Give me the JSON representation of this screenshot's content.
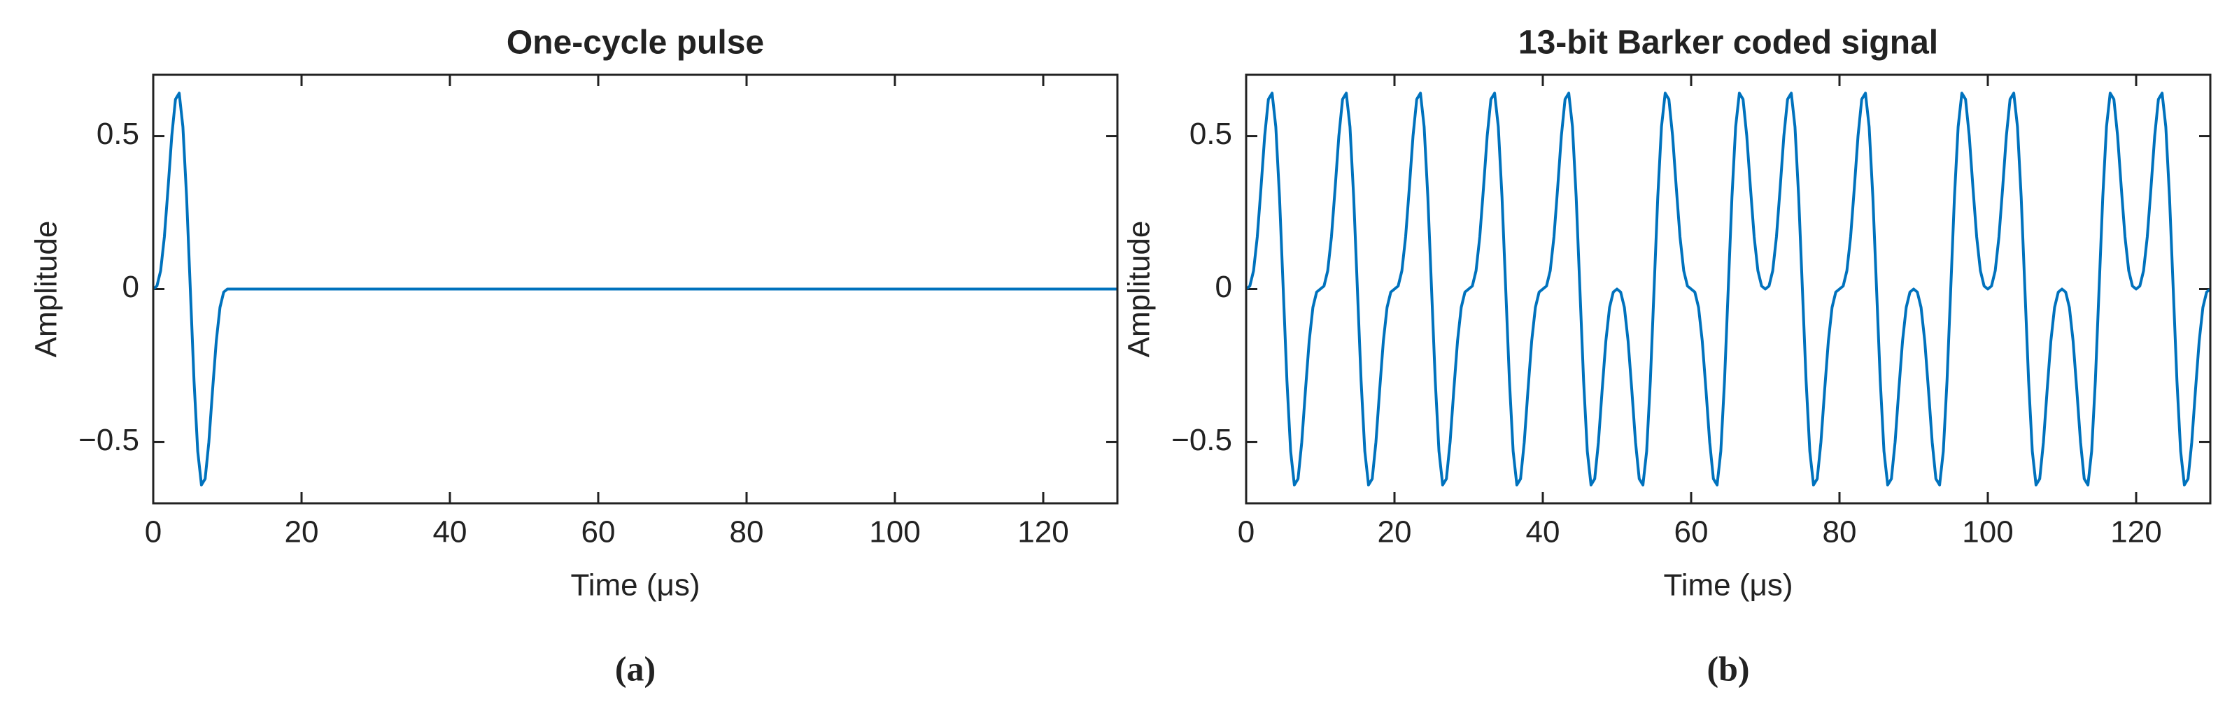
{
  "chart_data": [
    {
      "type": "line",
      "title": "One-cycle pulse",
      "xlabel": "Time (μs)",
      "ylabel": "Amplitude",
      "caption": "(a)",
      "color": "#0072bd",
      "xlim": [
        0,
        130
      ],
      "xticks": [
        0,
        20,
        40,
        60,
        80,
        100,
        120
      ],
      "ylim": [
        -0.7,
        0.7
      ],
      "yticks": [
        {
          "value": -0.5,
          "label": "−0.5"
        },
        0,
        0.5
      ],
      "x": [
        0,
        0.5,
        1,
        1.5,
        2,
        2.5,
        3,
        3.5,
        4,
        4.5,
        5,
        5.5,
        6,
        6.5,
        7,
        7.5,
        8,
        8.5,
        9,
        9.5,
        10,
        130
      ],
      "values": [
        0,
        0.01,
        0.06,
        0.17,
        0.33,
        0.5,
        0.62,
        0.64,
        0.53,
        0.3,
        0,
        -0.3,
        -0.53,
        -0.64,
        -0.62,
        -0.5,
        -0.33,
        -0.17,
        -0.06,
        -0.01,
        0,
        0
      ]
    },
    {
      "type": "line",
      "title": "13-bit Barker coded signal",
      "xlabel": "Time (μs)",
      "ylabel": "Amplitude",
      "caption": "(b)",
      "color": "#0072bd",
      "xlim": [
        0,
        130
      ],
      "xticks": [
        0,
        20,
        40,
        60,
        80,
        100,
        120
      ],
      "ylim": [
        -0.7,
        0.7
      ],
      "yticks": [
        {
          "value": -0.5,
          "label": "−0.5"
        },
        0,
        0.5
      ],
      "x": [
        0,
        0.5,
        1,
        1.5,
        2,
        2.5,
        3,
        3.5,
        4,
        4.5,
        5,
        5.5,
        6,
        6.5,
        7,
        7.5,
        8,
        8.5,
        9,
        9.5,
        10,
        10.5,
        11,
        11.5,
        12,
        12.5,
        13,
        13.5,
        14,
        14.5,
        15,
        15.5,
        16,
        16.5,
        17,
        17.5,
        18,
        18.5,
        19,
        19.5,
        20,
        20.5,
        21,
        21.5,
        22,
        22.5,
        23,
        23.5,
        24,
        24.5,
        25,
        25.5,
        26,
        26.5,
        27,
        27.5,
        28,
        28.5,
        29,
        29.5,
        30,
        30.5,
        31,
        31.5,
        32,
        32.5,
        33,
        33.5,
        34,
        34.5,
        35,
        35.5,
        36,
        36.5,
        37,
        37.5,
        38,
        38.5,
        39,
        39.5,
        40,
        40.5,
        41,
        41.5,
        42,
        42.5,
        43,
        43.5,
        44,
        44.5,
        45,
        45.5,
        46,
        46.5,
        47,
        47.5,
        48,
        48.5,
        49,
        49.5,
        50,
        50.5,
        51,
        51.5,
        52,
        52.5,
        53,
        53.5,
        54,
        54.5,
        55,
        55.5,
        56,
        56.5,
        57,
        57.5,
        58,
        58.5,
        59,
        59.5,
        60,
        60.5,
        61,
        61.5,
        62,
        62.5,
        63,
        63.5,
        64,
        64.5,
        65,
        65.5,
        66,
        66.5,
        67,
        67.5,
        68,
        68.5,
        69,
        69.5,
        70,
        70.5,
        71,
        71.5,
        72,
        72.5,
        73,
        73.5,
        74,
        74.5,
        75,
        75.5,
        76,
        76.5,
        77,
        77.5,
        78,
        78.5,
        79,
        79.5,
        80,
        80.5,
        81,
        81.5,
        82,
        82.5,
        83,
        83.5,
        84,
        84.5,
        85,
        85.5,
        86,
        86.5,
        87,
        87.5,
        88,
        88.5,
        89,
        89.5,
        90,
        90.5,
        91,
        91.5,
        92,
        92.5,
        93,
        93.5,
        94,
        94.5,
        95,
        95.5,
        96,
        96.5,
        97,
        97.5,
        98,
        98.5,
        99,
        99.5,
        100,
        100.5,
        101,
        101.5,
        102,
        102.5,
        103,
        103.5,
        104,
        104.5,
        105,
        105.5,
        106,
        106.5,
        107,
        107.5,
        108,
        108.5,
        109,
        109.5,
        110,
        110.5,
        111,
        111.5,
        112,
        112.5,
        113,
        113.5,
        114,
        114.5,
        115,
        115.5,
        116,
        116.5,
        117,
        117.5,
        118,
        118.5,
        119,
        119.5,
        120,
        120.5,
        121,
        121.5,
        122,
        122.5,
        123,
        123.5,
        124,
        124.5,
        125,
        125.5,
        126,
        126.5,
        127,
        127.5,
        128,
        128.5,
        129,
        129.5,
        130
      ],
      "values": [
        0,
        0.01,
        0.06,
        0.17,
        0.33,
        0.5,
        0.62,
        0.64,
        0.53,
        0.3,
        0,
        -0.3,
        -0.53,
        -0.64,
        -0.62,
        -0.5,
        -0.33,
        -0.17,
        -0.06,
        -0.01,
        0,
        0.01,
        0.06,
        0.17,
        0.33,
        0.5,
        0.62,
        0.64,
        0.53,
        0.3,
        0,
        -0.3,
        -0.53,
        -0.64,
        -0.62,
        -0.5,
        -0.33,
        -0.17,
        -0.06,
        -0.01,
        0,
        0.01,
        0.06,
        0.17,
        0.33,
        0.5,
        0.62,
        0.64,
        0.53,
        0.3,
        0,
        -0.3,
        -0.53,
        -0.64,
        -0.62,
        -0.5,
        -0.33,
        -0.17,
        -0.06,
        -0.01,
        0,
        0.01,
        0.06,
        0.17,
        0.33,
        0.5,
        0.62,
        0.64,
        0.53,
        0.3,
        0,
        -0.3,
        -0.53,
        -0.64,
        -0.62,
        -0.5,
        -0.33,
        -0.17,
        -0.06,
        -0.01,
        0,
        0.01,
        0.06,
        0.17,
        0.33,
        0.5,
        0.62,
        0.64,
        0.53,
        0.3,
        0,
        -0.3,
        -0.53,
        -0.64,
        -0.62,
        -0.5,
        -0.33,
        -0.17,
        -0.06,
        -0.01,
        0,
        -0.01,
        -0.06,
        -0.17,
        -0.33,
        -0.5,
        -0.62,
        -0.64,
        -0.53,
        -0.3,
        0,
        0.3,
        0.53,
        0.64,
        0.62,
        0.5,
        0.33,
        0.17,
        0.06,
        0.01,
        0,
        -0.01,
        -0.06,
        -0.17,
        -0.33,
        -0.5,
        -0.62,
        -0.64,
        -0.53,
        -0.3,
        0,
        0.3,
        0.53,
        0.64,
        0.62,
        0.5,
        0.33,
        0.17,
        0.06,
        0.01,
        0,
        0.01,
        0.06,
        0.17,
        0.33,
        0.5,
        0.62,
        0.64,
        0.53,
        0.3,
        0,
        -0.3,
        -0.53,
        -0.64,
        -0.62,
        -0.5,
        -0.33,
        -0.17,
        -0.06,
        -0.01,
        0,
        0.01,
        0.06,
        0.17,
        0.33,
        0.5,
        0.62,
        0.64,
        0.53,
        0.3,
        0,
        -0.3,
        -0.53,
        -0.64,
        -0.62,
        -0.5,
        -0.33,
        -0.17,
        -0.06,
        -0.01,
        0,
        -0.01,
        -0.06,
        -0.17,
        -0.33,
        -0.5,
        -0.62,
        -0.64,
        -0.53,
        -0.3,
        0,
        0.3,
        0.53,
        0.64,
        0.62,
        0.5,
        0.33,
        0.17,
        0.06,
        0.01,
        0,
        0.01,
        0.06,
        0.17,
        0.33,
        0.5,
        0.62,
        0.64,
        0.53,
        0.3,
        0,
        -0.3,
        -0.53,
        -0.64,
        -0.62,
        -0.5,
        -0.33,
        -0.17,
        -0.06,
        -0.01,
        0,
        -0.01,
        -0.06,
        -0.17,
        -0.33,
        -0.5,
        -0.62,
        -0.64,
        -0.53,
        -0.3,
        0,
        0.3,
        0.53,
        0.64,
        0.62,
        0.5,
        0.33,
        0.17,
        0.06,
        0.01,
        0,
        0.01,
        0.06,
        0.17,
        0.33,
        0.5,
        0.62,
        0.64,
        0.53,
        0.3,
        0,
        -0.3,
        -0.53,
        -0.64,
        -0.62,
        -0.5,
        -0.33,
        -0.17,
        -0.06,
        -0.01,
        0
      ]
    }
  ]
}
